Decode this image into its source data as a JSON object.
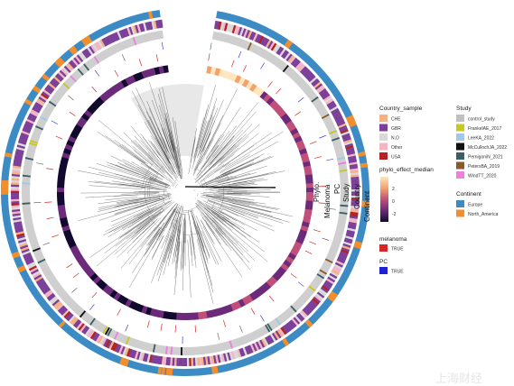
{
  "ring_labels": [
    "Continent",
    "Country",
    "Study",
    "PC",
    "Melanoma",
    "Phylo."
  ],
  "ring_label_ids": [
    "continent",
    "country",
    "study",
    "pc",
    "melanoma",
    "phylo"
  ],
  "legends": {
    "country_sample": {
      "title": "Country_sample",
      "items": [
        {
          "label": "CHE",
          "color": "#f4b183"
        },
        {
          "label": "GBR",
          "color": "#7b3f99"
        },
        {
          "label": "N.O",
          "color": "#d9d9d9"
        },
        {
          "label": "Other",
          "color": "#f2b5c4"
        },
        {
          "label": "USA",
          "color": "#b22222"
        }
      ]
    },
    "study": {
      "title": "Study",
      "items": [
        {
          "label": "control_study",
          "color": "#c0c0c0"
        },
        {
          "label": "FrankelAE_2017",
          "color": "#c8c820"
        },
        {
          "label": "LeeKA_2022",
          "color": "#9ec9e8"
        },
        {
          "label": "McCullochJA_2022",
          "color": "#111111"
        },
        {
          "label": "PernigoniN_2021",
          "color": "#3a5f66"
        },
        {
          "label": "PetersBA_2019",
          "color": "#8b5a2b"
        },
        {
          "label": "WindTT_2020",
          "color": "#f07de0"
        }
      ]
    },
    "phylo_effect": {
      "title": "phylo_effect_median",
      "ticks": [
        "2",
        "0",
        "-2"
      ],
      "gradient": [
        "#fde6c0",
        "#f3a26b",
        "#c0507a",
        "#6b2a7a",
        "#120a2e"
      ]
    },
    "continent": {
      "title": "Continent",
      "items": [
        {
          "label": "Europe",
          "color": "#3d8bc4"
        },
        {
          "label": "North_America",
          "color": "#f28e2b"
        }
      ]
    },
    "melanoma": {
      "title": "melanoma",
      "items": [
        {
          "label": "TRUE",
          "color": "#d62728"
        }
      ]
    },
    "pc": {
      "title": "PC",
      "items": [
        {
          "label": "TRUE",
          "color": "#1f1fd6"
        }
      ]
    }
  },
  "colors": {
    "continent_europe": "#3d8bc4",
    "continent_na": "#f28e2b",
    "study_bg": "#cfcfcf",
    "melanoma_mark": "#d62728",
    "pc_mark": "#1f1fd6",
    "tree": "#333333"
  }
}
